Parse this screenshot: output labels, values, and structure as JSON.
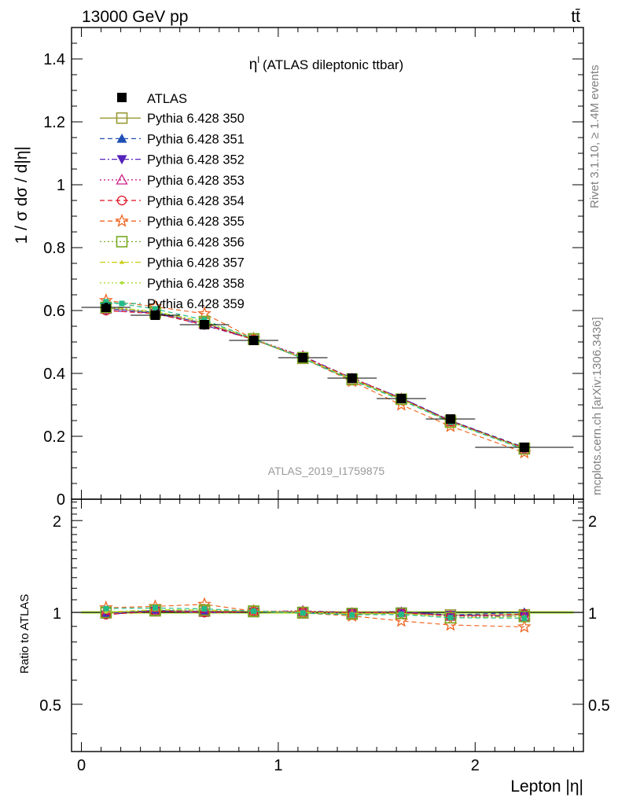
{
  "header": {
    "energy_label": "13000 GeV pp",
    "process_label": "tt̄",
    "side_label_top": "Rivet 3.1.10, ≥ 1.4M events",
    "side_label_bottom": "mcplots.cern.ch [arXiv:1306.3436]"
  },
  "chart_data": {
    "type": "line",
    "title": "η",
    "title_superscript": "l",
    "title_suffix": "(ATLAS dileptonic ttbar)",
    "watermark": "ATLAS_2019_I1759875",
    "xlabel": "Lepton |η|",
    "ylabel": "1 / σ  dσ / d|η|",
    "ratio_ylabel": "Ratio to ATLAS",
    "xlim": [
      -0.05,
      2.55
    ],
    "ylim": [
      0,
      1.5
    ],
    "ratio_ylim": [
      0.35,
      2.35
    ],
    "x_ticks": [
      0,
      1,
      2
    ],
    "y_ticks": [
      0,
      0.2,
      0.4,
      0.6,
      0.8,
      1,
      1.2,
      1.4
    ],
    "y_tick_labels": [
      "0",
      "0.2",
      "0.4",
      "0.6",
      "0.8",
      "1",
      "1.2",
      "1.4"
    ],
    "ratio_ticks": [
      0.5,
      1,
      2
    ],
    "ratio_tick_labels": [
      "0.5",
      "1",
      "2"
    ],
    "x": [
      0.125,
      0.375,
      0.625,
      0.875,
      1.125,
      1.375,
      1.625,
      1.875,
      2.25
    ],
    "x_bins": [
      [
        0,
        0.25
      ],
      [
        0.25,
        0.5
      ],
      [
        0.5,
        0.75
      ],
      [
        0.75,
        1.0
      ],
      [
        1.0,
        1.25
      ],
      [
        1.25,
        1.5
      ],
      [
        1.5,
        1.75
      ],
      [
        1.75,
        2.0
      ],
      [
        2.0,
        2.5
      ]
    ],
    "data": {
      "name": "ATLAS",
      "values": [
        0.61,
        0.585,
        0.555,
        0.505,
        0.45,
        0.385,
        0.32,
        0.255,
        0.165
      ]
    },
    "series": [
      {
        "name": "Pythia 6.428 350",
        "color": "#999933",
        "marker": "square-open",
        "dash": "solid",
        "values": [
          0.608,
          0.592,
          0.56,
          0.508,
          0.448,
          0.38,
          0.318,
          0.25,
          0.162
        ]
      },
      {
        "name": "Pythia 6.428 351",
        "color": "#1f4fb4",
        "marker": "triangle-up-filled",
        "dash": "dashed",
        "values": [
          0.605,
          0.595,
          0.558,
          0.508,
          0.45,
          0.383,
          0.322,
          0.25,
          0.165
        ]
      },
      {
        "name": "Pythia 6.428 352",
        "color": "#5522bb",
        "marker": "triangle-down-filled",
        "dash": "dashdot",
        "values": [
          0.6,
          0.592,
          0.553,
          0.508,
          0.455,
          0.385,
          0.322,
          0.25,
          0.16
        ]
      },
      {
        "name": "Pythia 6.428 353",
        "color": "#cc2288",
        "marker": "triangle-up-open",
        "dash": "dotted",
        "values": [
          0.605,
          0.596,
          0.558,
          0.51,
          0.455,
          0.383,
          0.32,
          0.248,
          0.16
        ]
      },
      {
        "name": "Pythia 6.428 354",
        "color": "#dd1122",
        "marker": "circle-open",
        "dash": "dashed",
        "values": [
          0.6,
          0.59,
          0.555,
          0.508,
          0.452,
          0.385,
          0.32,
          0.248,
          0.163
        ]
      },
      {
        "name": "Pythia 6.428 355",
        "color": "#ee6622",
        "marker": "star-open",
        "dash": "dashed",
        "values": [
          0.632,
          0.612,
          0.59,
          0.51,
          0.448,
          0.375,
          0.3,
          0.232,
          0.148
        ]
      },
      {
        "name": "Pythia 6.428 356",
        "color": "#77aa22",
        "marker": "square-open",
        "dash": "dotted",
        "values": [
          0.61,
          0.595,
          0.565,
          0.51,
          0.45,
          0.382,
          0.318,
          0.245,
          0.16
        ]
      },
      {
        "name": "Pythia 6.428 357",
        "color": "#cccc11",
        "marker": "tri-small",
        "dash": "dashdot",
        "values": [
          0.612,
          0.597,
          0.565,
          0.51,
          0.45,
          0.382,
          0.318,
          0.245,
          0.16
        ]
      },
      {
        "name": "Pythia 6.428 358",
        "color": "#aadd33",
        "marker": "dot-small",
        "dash": "dotted",
        "values": [
          0.612,
          0.597,
          0.565,
          0.51,
          0.45,
          0.382,
          0.318,
          0.245,
          0.16
        ]
      },
      {
        "name": "Pythia 6.428 359",
        "color": "#22bb88",
        "marker": "square-filled-small",
        "dash": "dashed",
        "values": [
          0.628,
          0.605,
          0.57,
          0.51,
          0.448,
          0.378,
          0.315,
          0.245,
          0.158
        ]
      }
    ],
    "ratio_band_color": "#ccff66",
    "grid": false,
    "legend_position": "top-left"
  }
}
